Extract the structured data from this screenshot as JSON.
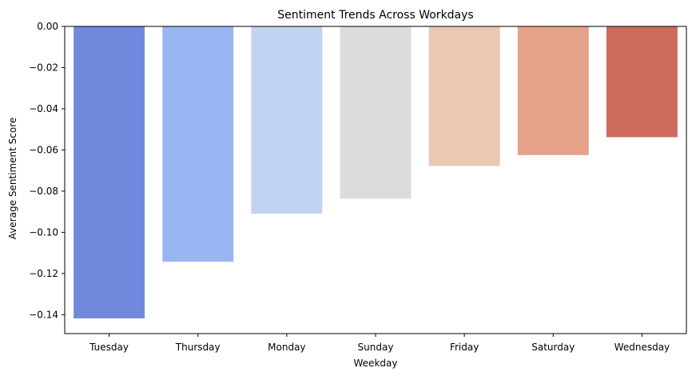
{
  "chart_data": {
    "type": "bar",
    "title": "Sentiment Trends Across Workdays",
    "xlabel": "Weekday",
    "ylabel": "Average Sentiment Score",
    "categories": [
      "Tuesday",
      "Thursday",
      "Monday",
      "Sunday",
      "Friday",
      "Saturday",
      "Wednesday"
    ],
    "values": [
      -0.1418,
      -0.1143,
      -0.091,
      -0.0837,
      -0.0678,
      -0.0625,
      -0.0538
    ],
    "colors": [
      "#7089dc",
      "#9ab6f2",
      "#c1d3f0",
      "#dcdcdc",
      "#ecc7b4",
      "#e6a189",
      "#cc6a5b"
    ],
    "ylim": [
      -0.1492,
      0.0
    ],
    "yticks": [
      0.0,
      -0.02,
      -0.04,
      -0.06,
      -0.08,
      -0.1,
      -0.12,
      -0.14
    ],
    "ytick_labels": [
      "0.00",
      "−0.02",
      "−0.04",
      "−0.06",
      "−0.08",
      "−0.10",
      "−0.12",
      "−0.14"
    ],
    "grid": false,
    "legend": "none"
  }
}
